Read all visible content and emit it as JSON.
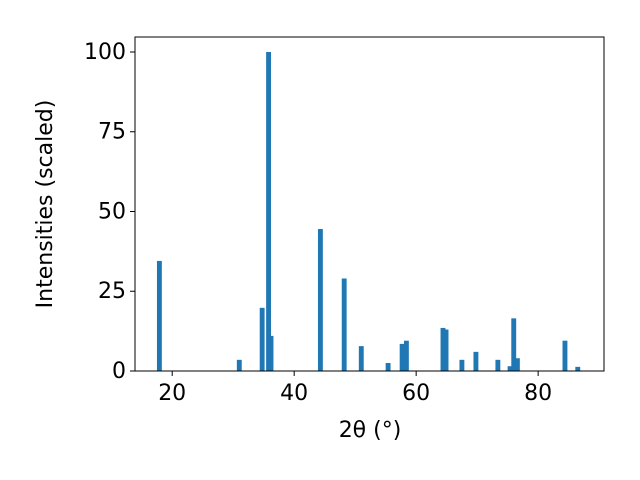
{
  "chart_data": {
    "type": "bar",
    "x_label": "2θ (°)",
    "y_label": "Intensities (scaled)",
    "x": [
      17.9,
      31.0,
      34.75,
      35.8,
      36.2,
      44.3,
      48.2,
      51.0,
      55.4,
      57.7,
      58.4,
      64.4,
      64.9,
      67.5,
      69.8,
      73.4,
      75.4,
      76.0,
      76.6,
      84.4,
      86.5
    ],
    "values": [
      34.5,
      3.5,
      19.8,
      100,
      11,
      44.5,
      29,
      7.8,
      2.5,
      8.5,
      9.5,
      13.5,
      13,
      3.5,
      6,
      3.5,
      1.5,
      16.5,
      4,
      9.5,
      1.3
    ],
    "color": "#1f77b4",
    "xlim": [
      13.9,
      90.8
    ],
    "xticks": [
      20,
      40,
      60,
      80
    ],
    "ylim": [
      0,
      104.7
    ],
    "yticks": [
      0,
      25,
      50,
      75,
      100
    ],
    "grid": false
  }
}
